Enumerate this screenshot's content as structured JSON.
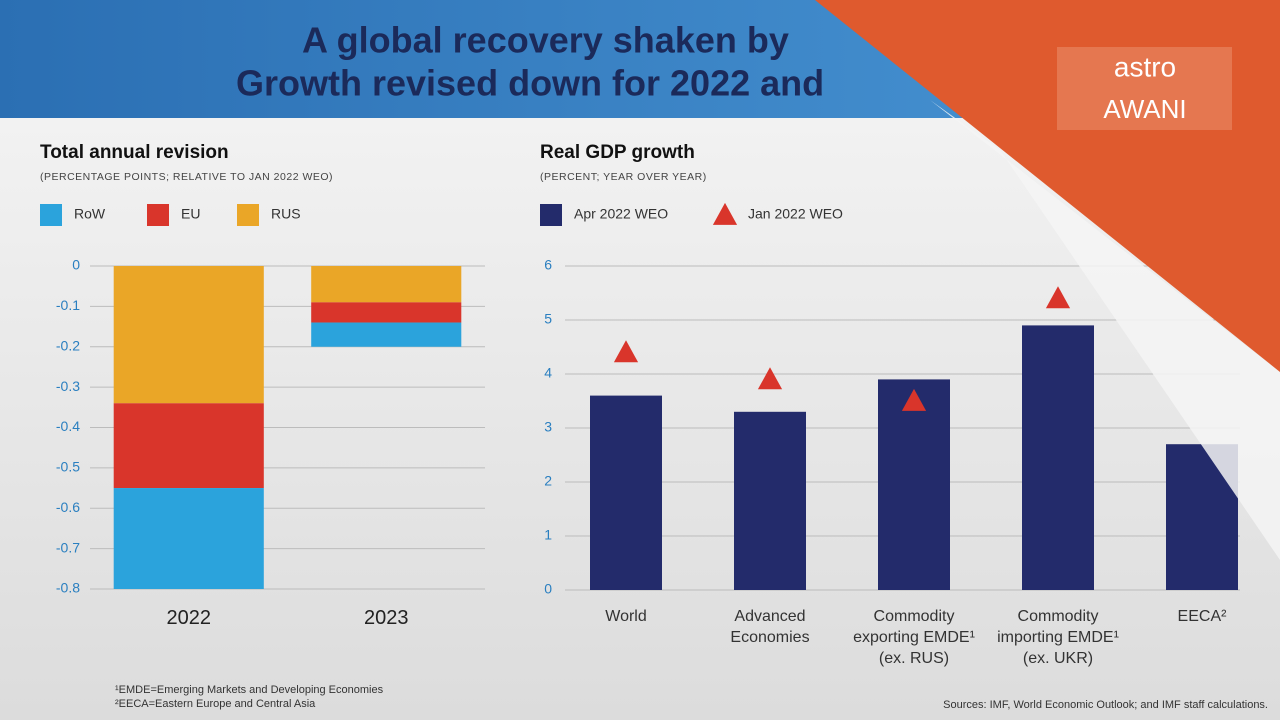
{
  "header": {
    "lines": [
      "A global recovery shaken by",
      "Growth revised down for 2022 and"
    ]
  },
  "logo": {
    "top": "astro",
    "bottom": "AWANI"
  },
  "chart_data": [
    {
      "type": "stacked_bar",
      "title": "Total annual revision",
      "subtitle": "(PERCENTAGE POINTS; RELATIVE TO JAN 2022 WEO)",
      "categories": [
        "2022",
        "2023"
      ],
      "series": [
        {
          "name": "RoW",
          "color": "#2ba3dc",
          "values": [
            -0.25,
            -0.06
          ]
        },
        {
          "name": "EU",
          "color": "#d9352b",
          "values": [
            -0.21,
            -0.05
          ]
        },
        {
          "name": "RUS",
          "color": "#eaa627",
          "values": [
            -0.34,
            -0.09
          ]
        }
      ],
      "ylim": [
        -0.8,
        0
      ],
      "yticks": [
        0,
        -0.1,
        -0.2,
        -0.3,
        -0.4,
        -0.5,
        -0.6,
        -0.7,
        -0.8
      ],
      "grid": true
    },
    {
      "type": "bar",
      "title": "Real GDP growth",
      "subtitle": "(PERCENT; YEAR OVER YEAR)",
      "categories": [
        "World",
        "Advanced\nEconomies",
        "Commodity\nexporting EMDE¹\n(ex. RUS)",
        "Commodity\nimporting EMDE¹\n(ex. UKR)",
        "EECA²"
      ],
      "series": [
        {
          "name": "Apr 2022 WEO",
          "color": "#232b6b",
          "values": [
            3.6,
            3.3,
            3.9,
            4.9,
            2.7
          ]
        },
        {
          "name": "Jan 2022 WEO",
          "color": "#d9352b",
          "marker": "triangle",
          "values": [
            4.4,
            3.9,
            3.5,
            5.4,
            null
          ]
        }
      ],
      "ylim": [
        0,
        6
      ],
      "yticks": [
        0,
        1,
        2,
        3,
        4,
        5,
        6
      ],
      "grid": true
    }
  ],
  "footnotes": [
    "¹EMDE=Emerging Markets and Developing Economies",
    "²EECA=Eastern Europe and Central Asia"
  ],
  "source": "Sources: IMF, World Economic Outlook; and IMF staff calculations."
}
